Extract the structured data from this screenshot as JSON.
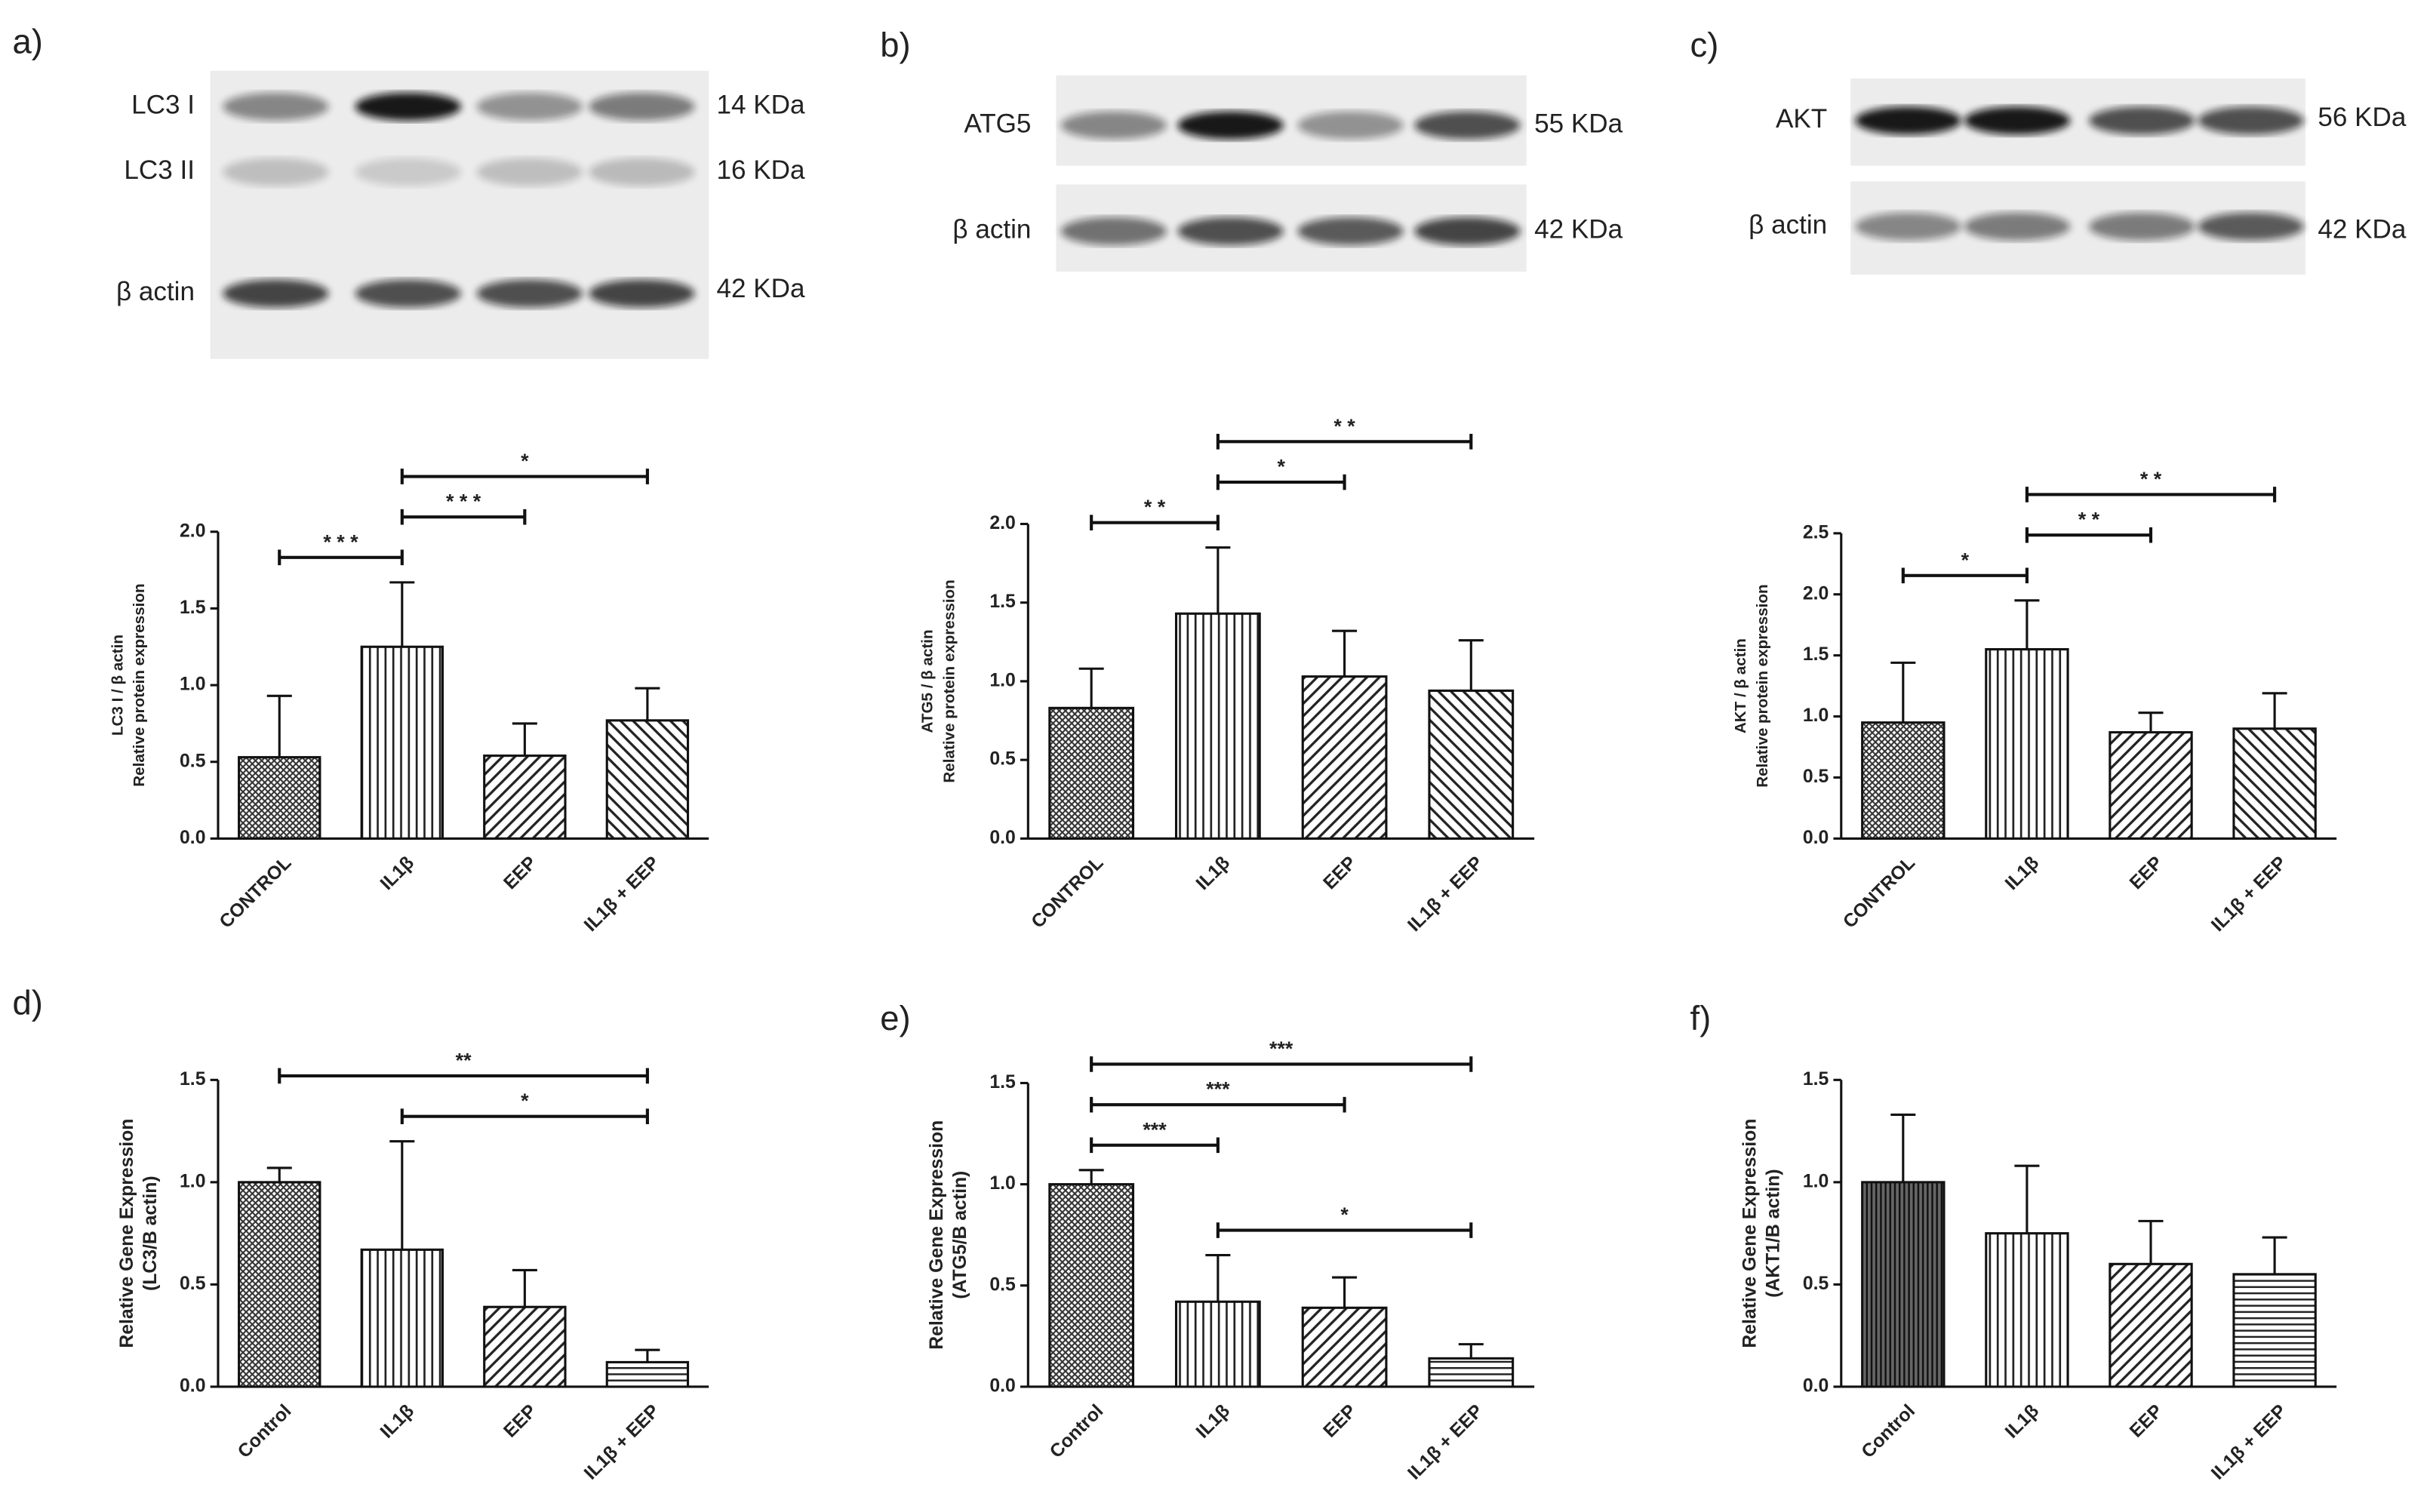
{
  "blots": [
    {
      "panel": "a)",
      "rows": [
        {
          "label": "LC3 I",
          "size": "14 KDa"
        },
        {
          "label": "LC3 II",
          "size": "16 KDa"
        },
        {
          "label": "β actin",
          "size": "42 KDa"
        }
      ]
    },
    {
      "panel": "b)",
      "rows": [
        {
          "label": "ATG5",
          "size": "55 KDa"
        },
        {
          "label": "β actin",
          "size": "42 KDa"
        }
      ]
    },
    {
      "panel": "c)",
      "rows": [
        {
          "label": "AKT",
          "size": "56 KDa"
        },
        {
          "label": "β actin",
          "size": "42 KDa"
        }
      ]
    }
  ],
  "chart_data": [
    {
      "type": "bar",
      "ylabel": [
        "LC3 I / β actin",
        "Relative protein expression"
      ],
      "categories": [
        "CONTROL",
        "IL1β",
        "EEP",
        "IL1β + EEP"
      ],
      "values": [
        0.53,
        1.25,
        0.54,
        0.77
      ],
      "errors": [
        0.4,
        0.42,
        0.21,
        0.21
      ],
      "patterns": [
        "crosshatch",
        "vertical",
        "diagonal",
        "antidiagonal"
      ],
      "ylim": [
        0,
        2
      ],
      "yticks": [
        {
          "value": 0,
          "label": "0.0"
        },
        0.5,
        {
          "value": 1,
          "label": "1.0"
        },
        1.5,
        {
          "value": 2,
          "label": "2.0"
        }
      ],
      "annotations": [
        {
          "from": 0,
          "to": 1,
          "label": "* * *"
        },
        {
          "from": 1,
          "to": 2,
          "label": "* * *"
        },
        {
          "from": 1,
          "to": 3,
          "label": "*"
        }
      ]
    },
    {
      "type": "bar",
      "ylabel": [
        "ATG5 / β actin",
        "Relative protein expression"
      ],
      "categories": [
        "CONTROL",
        "IL1β",
        "EEP",
        "IL1β + EEP"
      ],
      "values": [
        0.83,
        1.43,
        1.03,
        0.94
      ],
      "errors": [
        0.25,
        0.42,
        0.29,
        0.32
      ],
      "patterns": [
        "crosshatch",
        "vertical",
        "diagonal",
        "antidiagonal"
      ],
      "ylim": [
        0,
        2
      ],
      "yticks": [
        {
          "value": 0,
          "label": "0.0"
        },
        0.5,
        {
          "value": 1,
          "label": "1.0"
        },
        1.5,
        {
          "value": 2,
          "label": "2.0"
        }
      ],
      "annotations": [
        {
          "from": 0,
          "to": 1,
          "label": "* *"
        },
        {
          "from": 1,
          "to": 2,
          "label": "*"
        },
        {
          "from": 1,
          "to": 3,
          "label": "* *"
        }
      ]
    },
    {
      "type": "bar",
      "ylabel": [
        "AKT / β actin",
        "Relative protein expression"
      ],
      "categories": [
        "CONTROL",
        "IL1β",
        "EEP",
        "IL1β + EEP"
      ],
      "values": [
        0.95,
        1.55,
        0.87,
        0.9
      ],
      "errors": [
        0.49,
        0.4,
        0.16,
        0.29
      ],
      "patterns": [
        "crosshatch",
        "vertical",
        "diagonal",
        "antidiagonal"
      ],
      "ylim": [
        0,
        2.5
      ],
      "yticks": [
        {
          "value": 0,
          "label": "0.0"
        },
        0.5,
        {
          "value": 1,
          "label": "1.0"
        },
        1.5,
        {
          "value": 2,
          "label": "2.0"
        },
        2.5
      ],
      "annotations": [
        {
          "from": 0,
          "to": 1,
          "label": "*"
        },
        {
          "from": 1,
          "to": 2,
          "label": "* *"
        },
        {
          "from": 1,
          "to": 3,
          "label": "* *"
        }
      ]
    },
    {
      "type": "bar",
      "panel": "d)",
      "ylabel": [
        "Relative Gene Expression",
        "(LC3/B actin)"
      ],
      "categories": [
        "Control",
        "IL1β",
        "EEP",
        "IL1β + EEP"
      ],
      "values": [
        1.0,
        0.67,
        0.39,
        0.12
      ],
      "errors": [
        0.07,
        0.53,
        0.18,
        0.06
      ],
      "patterns": [
        "crosshatch",
        "vertical",
        "diagonal",
        "horizontal"
      ],
      "ylim": [
        0,
        1.5
      ],
      "yticks": [
        {
          "value": 0,
          "label": "0.0"
        },
        0.5,
        {
          "value": 1,
          "label": "1.0"
        },
        1.5
      ],
      "annotations": [
        {
          "from": 1,
          "to": 3,
          "label": "*"
        },
        {
          "from": 0,
          "to": 3,
          "label": "**"
        }
      ]
    },
    {
      "type": "bar",
      "panel": "e)",
      "ylabel": [
        "Relative Gene Expression",
        "(ATG5/B actin)"
      ],
      "categories": [
        "Control",
        "IL1β",
        "EEP",
        "IL1β + EEP"
      ],
      "values": [
        1.0,
        0.42,
        0.39,
        0.14
      ],
      "errors": [
        0.07,
        0.23,
        0.15,
        0.07
      ],
      "patterns": [
        "crosshatch",
        "vertical",
        "diagonal",
        "horizontal"
      ],
      "ylim": [
        0,
        1.5
      ],
      "yticks": [
        {
          "value": 0,
          "label": "0.0"
        },
        0.5,
        {
          "value": 1,
          "label": "1.0"
        },
        1.5
      ],
      "annotations": [
        {
          "from": 1,
          "to": 3,
          "label": "*"
        },
        {
          "from": 0,
          "to": 1,
          "label": "***"
        },
        {
          "from": 0,
          "to": 2,
          "label": "***"
        },
        {
          "from": 0,
          "to": 3,
          "label": "***"
        }
      ]
    },
    {
      "type": "bar",
      "panel": "f)",
      "ylabel": [
        "Relative Gene Expression",
        "(AKT1/B actin)"
      ],
      "categories": [
        "Control",
        "IL1β",
        "EEP",
        "IL1β + EEP"
      ],
      "values": [
        1.0,
        0.75,
        0.6,
        0.55
      ],
      "errors": [
        0.33,
        0.33,
        0.21,
        0.18
      ],
      "patterns": [
        "grid",
        "vertical",
        "diagonal",
        "horizontal"
      ],
      "ylim": [
        0,
        1.5
      ],
      "yticks": [
        {
          "value": 0,
          "label": "0.0"
        },
        0.5,
        {
          "value": 1,
          "label": "1.0"
        },
        1.5
      ],
      "annotations": []
    }
  ]
}
